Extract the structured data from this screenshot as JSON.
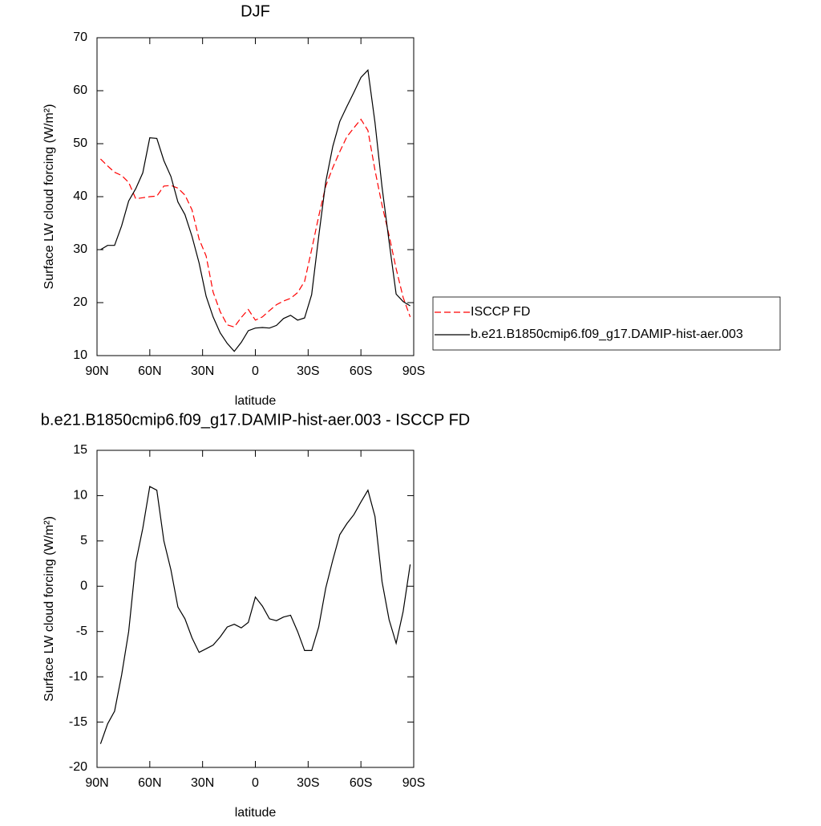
{
  "chart_data": [
    {
      "type": "line",
      "title": "DJF",
      "xlabel": "latitude",
      "ylabel": "Surface LW cloud forcing (W/m²)",
      "x": [
        88,
        84,
        80,
        76,
        72,
        68,
        64,
        60,
        56,
        52,
        48,
        44,
        40,
        36,
        32,
        28,
        24,
        20,
        16,
        12,
        8,
        4,
        0,
        -4,
        -8,
        -12,
        -16,
        -20,
        -24,
        -28,
        -32,
        -36,
        -40,
        -44,
        -48,
        -52,
        -56,
        -60,
        -64,
        -68,
        -72,
        -76,
        -80,
        -84,
        -88
      ],
      "series": [
        {
          "name": "ISCCP FD",
          "color": "#ff0000",
          "style": "dashed",
          "values": [
            47.1,
            45.8,
            44.6,
            44.0,
            42.7,
            39.6,
            39.8,
            40.0,
            40.1,
            42.0,
            42.1,
            41.6,
            40.3,
            37.5,
            32.0,
            28.8,
            22.0,
            18.3,
            15.8,
            15.4,
            17.2,
            18.7,
            16.7,
            17.3,
            18.5,
            19.6,
            20.3,
            20.8,
            21.9,
            24.0,
            30.0,
            36.3,
            42.0,
            45.5,
            48.5,
            51.3,
            53.0,
            54.6,
            52.5,
            45.0,
            38.4,
            32.7,
            26.4,
            21.0,
            17.3
          ]
        },
        {
          "name": "b.e21.B1850cmip6.f09_g17.DAMIP-hist-aer.003",
          "color": "#000000",
          "style": "solid",
          "values": [
            30.0,
            30.8,
            30.8,
            34.5,
            39.2,
            41.5,
            44.5,
            51.1,
            51.0,
            46.8,
            43.8,
            39.0,
            36.6,
            32.5,
            27.5,
            21.2,
            17.3,
            14.3,
            12.3,
            10.8,
            12.5,
            14.7,
            15.2,
            15.3,
            15.2,
            15.7,
            17.0,
            17.6,
            16.7,
            17.1,
            21.5,
            32.5,
            42.8,
            49.5,
            54.2,
            57.0,
            59.7,
            62.5,
            63.9,
            54.0,
            41.8,
            31.5,
            21.6,
            20.2,
            19.4
          ]
        }
      ],
      "xlim": [
        90,
        -90
      ],
      "xticks": [
        {
          "value": 90,
          "label": "90N"
        },
        {
          "value": 60,
          "label": "60N"
        },
        {
          "value": 30,
          "label": "30N"
        },
        0,
        {
          "value": -30,
          "label": "30S"
        },
        {
          "value": -60,
          "label": "60S"
        },
        {
          "value": -90,
          "label": "90S"
        }
      ],
      "ylim": [
        10,
        70
      ],
      "yticks": [
        10,
        20,
        30,
        40,
        50,
        60,
        70
      ],
      "grid": false,
      "legend": "right"
    },
    {
      "type": "line",
      "title": "b.e21.B1850cmip6.f09_g17.DAMIP-hist-aer.003 - ISCCP FD",
      "xlabel": "latitude",
      "ylabel": "Surface LW cloud forcing (W/m²)",
      "x": [
        88,
        84,
        80,
        76,
        72,
        68,
        64,
        60,
        56,
        52,
        48,
        44,
        40,
        36,
        32,
        28,
        24,
        20,
        16,
        12,
        8,
        4,
        0,
        -4,
        -8,
        -12,
        -16,
        -20,
        -24,
        -28,
        -32,
        -36,
        -40,
        -44,
        -48,
        -52,
        -56,
        -60,
        -64,
        -68,
        -72,
        -76,
        -80,
        -84,
        -88
      ],
      "series": [
        {
          "color": "#000000",
          "style": "solid",
          "values": [
            -17.4,
            -15.2,
            -13.8,
            -9.8,
            -5.0,
            2.6,
            6.4,
            11.0,
            10.6,
            5.0,
            1.8,
            -2.3,
            -3.6,
            -5.7,
            -7.3,
            -6.9,
            -6.5,
            -5.6,
            -4.5,
            -4.2,
            -4.6,
            -4.0,
            -1.2,
            -2.2,
            -3.6,
            -3.8,
            -3.4,
            -3.2,
            -5.0,
            -7.1,
            -7.1,
            -4.5,
            -0.2,
            2.9,
            5.7,
            6.9,
            7.9,
            9.3,
            10.6,
            7.7,
            0.5,
            -3.7,
            -6.3,
            -2.8,
            2.4
          ]
        }
      ],
      "xlim": [
        90,
        -90
      ],
      "xticks": [
        {
          "value": 90,
          "label": "90N"
        },
        {
          "value": 60,
          "label": "60N"
        },
        {
          "value": 30,
          "label": "30N"
        },
        0,
        {
          "value": -30,
          "label": "30S"
        },
        {
          "value": -60,
          "label": "60S"
        },
        {
          "value": -90,
          "label": "90S"
        }
      ],
      "ylim": [
        -20,
        15
      ],
      "yticks": [
        -20,
        -15,
        -10,
        -5,
        0,
        5,
        10,
        15
      ],
      "grid": false
    }
  ]
}
